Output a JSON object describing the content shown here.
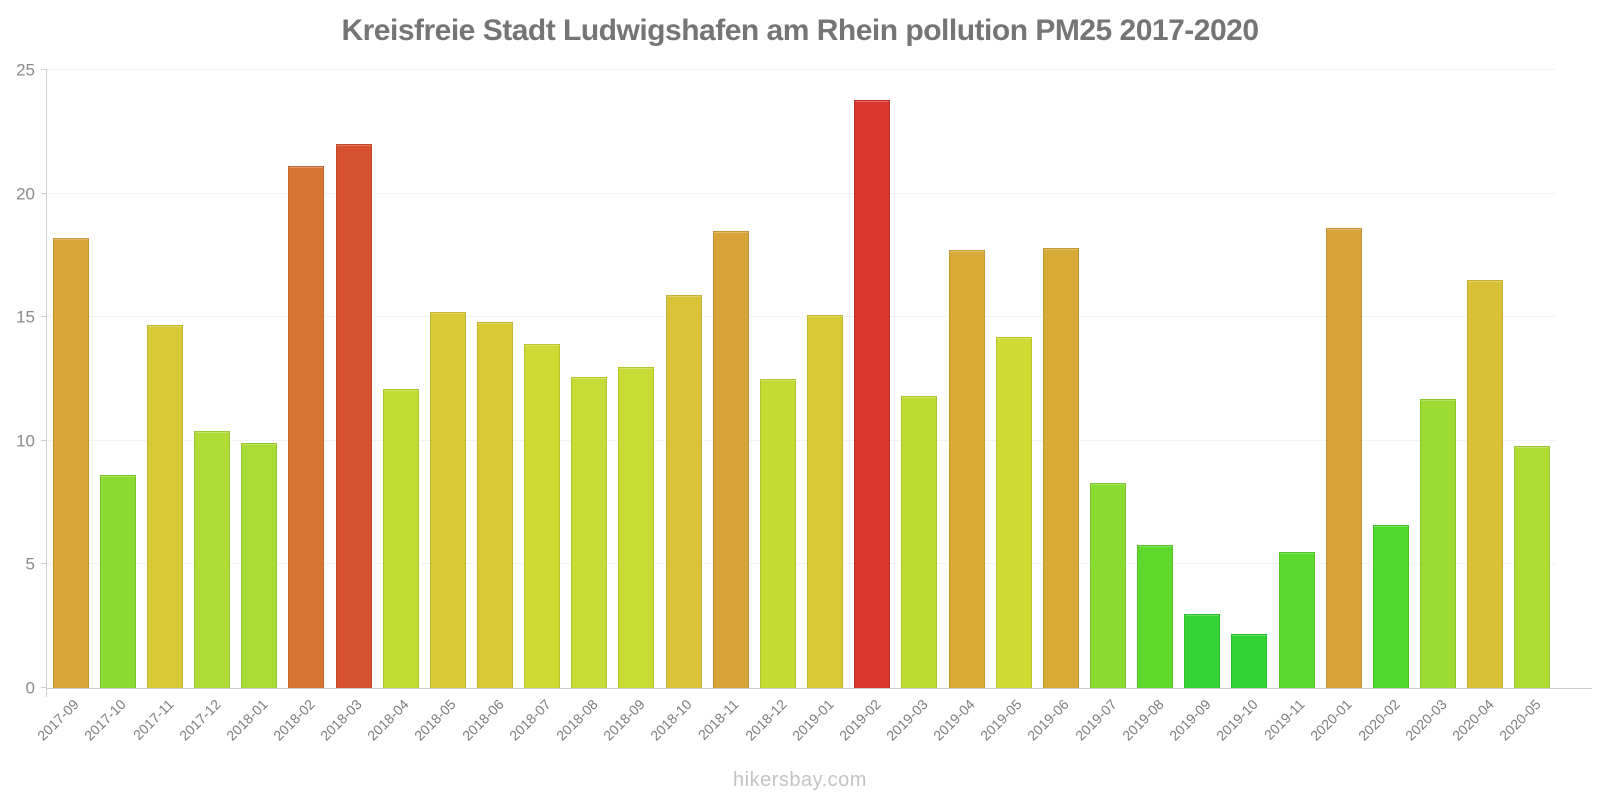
{
  "title": "Kreisfreie Stadt Ludwigshafen am Rhein pollution PM25 2017-2020",
  "footer": "hikersbay.com",
  "colors": {
    "axis": "#cccccc",
    "grid": "#f3f3f3",
    "title_text": "#757575",
    "y_tick_text": "#8a8a8a",
    "x_tick_text": "#7d7d7d",
    "watermark_text": "#c6c2c2"
  },
  "chart_data": {
    "type": "bar",
    "title": "Kreisfreie Stadt Ludwigshafen am Rhein pollution PM25 2017-2020",
    "xlabel": "",
    "ylabel": "",
    "ylim": [
      0,
      25
    ],
    "yticks": [
      0,
      5,
      10,
      15,
      20,
      25
    ],
    "grid": true,
    "legend": false,
    "categories": [
      "2017-09",
      "2017-10",
      "2017-11",
      "2017-12",
      "2018-01",
      "2018-02",
      "2018-03",
      "2018-04",
      "2018-05",
      "2018-06",
      "2018-07",
      "2018-08",
      "2018-09",
      "2018-10",
      "2018-11",
      "2018-12",
      "2019-01",
      "2019-02",
      "2019-03",
      "2019-04",
      "2019-05",
      "2019-06",
      "2019-07",
      "2019-08",
      "2019-09",
      "2019-10",
      "2019-11",
      "2020-01",
      "2020-02",
      "2020-03",
      "2020-04",
      "2020-05"
    ],
    "values": [
      18.2,
      8.6,
      14.7,
      10.4,
      9.9,
      21.1,
      22.0,
      12.1,
      15.2,
      14.8,
      13.9,
      12.6,
      13.0,
      15.9,
      18.5,
      12.5,
      15.1,
      23.8,
      11.8,
      17.7,
      14.2,
      17.8,
      8.3,
      5.8,
      3.0,
      2.2,
      5.5,
      18.6,
      6.6,
      11.7,
      16.5,
      9.8
    ],
    "bar_colors": [
      "#d8a539",
      "#8cdb32",
      "#d8ca36",
      "#aedb35",
      "#a8db34",
      "#d87434",
      "#d8512f",
      "#c0db35",
      "#d8ca36",
      "#d8c936",
      "#cedb35",
      "#c6db35",
      "#c9db35",
      "#d8c436",
      "#d8a439",
      "#c5db35",
      "#d8ca36",
      "#d93630",
      "#bedb35",
      "#d8ab38",
      "#d0db35",
      "#d8aa38",
      "#89db31",
      "#5fd92e",
      "#33d433",
      "#2fd433",
      "#5bd92e",
      "#d8a339",
      "#4fd82e",
      "#9cdb32",
      "#d8c136",
      "#aedb34"
    ]
  }
}
